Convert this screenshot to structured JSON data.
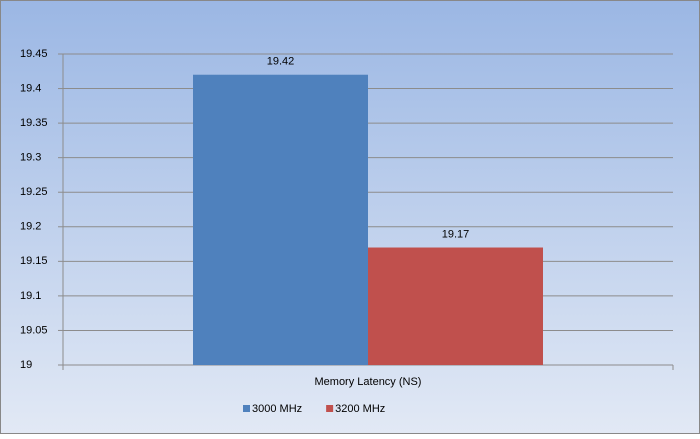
{
  "chart_data": {
    "type": "bar",
    "categories": [
      "Memory Latency (NS)"
    ],
    "series": [
      {
        "name": "3000 MHz",
        "color": "#4f81bd",
        "values": [
          19.42
        ]
      },
      {
        "name": "3200 MHz",
        "color": "#c0504d",
        "values": [
          19.17
        ]
      }
    ],
    "ylim": [
      19,
      19.45
    ],
    "yticks": [
      19,
      19.05,
      19.1,
      19.15,
      19.2,
      19.25,
      19.3,
      19.35,
      19.4,
      19.45
    ],
    "grid": true,
    "legend": "bottom"
  }
}
